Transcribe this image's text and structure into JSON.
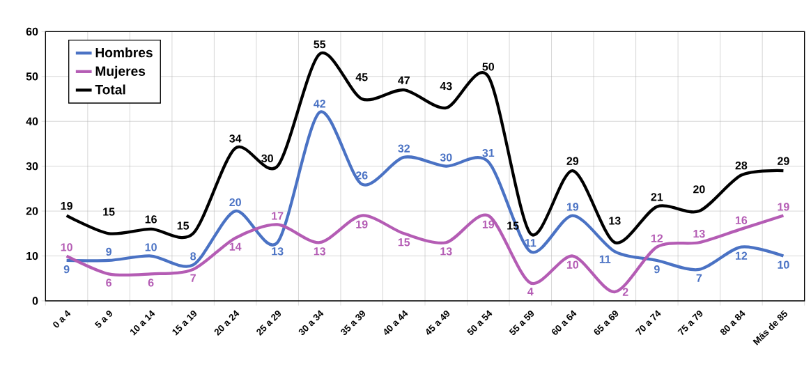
{
  "chart_data": {
    "type": "line",
    "categories": [
      "0 a 4",
      "5 a 9",
      "10 a 14",
      "15 a 19",
      "20 a 24",
      "25 a 29",
      "30 a 34",
      "35 a 39",
      "40 a 44",
      "45 a 49",
      "50 a 54",
      "55 a 59",
      "60 a 64",
      "65 a 69",
      "70 a 74",
      "75 a 79",
      "80 a 84",
      "Más de 85"
    ],
    "series": [
      {
        "name": "Hombres",
        "color": "#4a72c4",
        "values": [
          9,
          9,
          10,
          8,
          20,
          13,
          42,
          26,
          32,
          30,
          31,
          11,
          19,
          11,
          9,
          7,
          12,
          10
        ]
      },
      {
        "name": "Mujeres",
        "color": "#b45cb4",
        "values": [
          10,
          6,
          6,
          7,
          14,
          17,
          13,
          19,
          15,
          13,
          19,
          4,
          10,
          2,
          12,
          13,
          16,
          19
        ]
      },
      {
        "name": "Total",
        "color": "#000000",
        "values": [
          19,
          15,
          16,
          15,
          34,
          30,
          55,
          45,
          47,
          43,
          50,
          15,
          29,
          13,
          21,
          20,
          28,
          29
        ]
      }
    ],
    "ylim": [
      0,
      60
    ],
    "yticks": [
      0,
      10,
      20,
      30,
      40,
      50,
      60
    ],
    "grid": true,
    "legend": "top left",
    "data_labels": true,
    "marker": "none",
    "line_style": "solid"
  }
}
